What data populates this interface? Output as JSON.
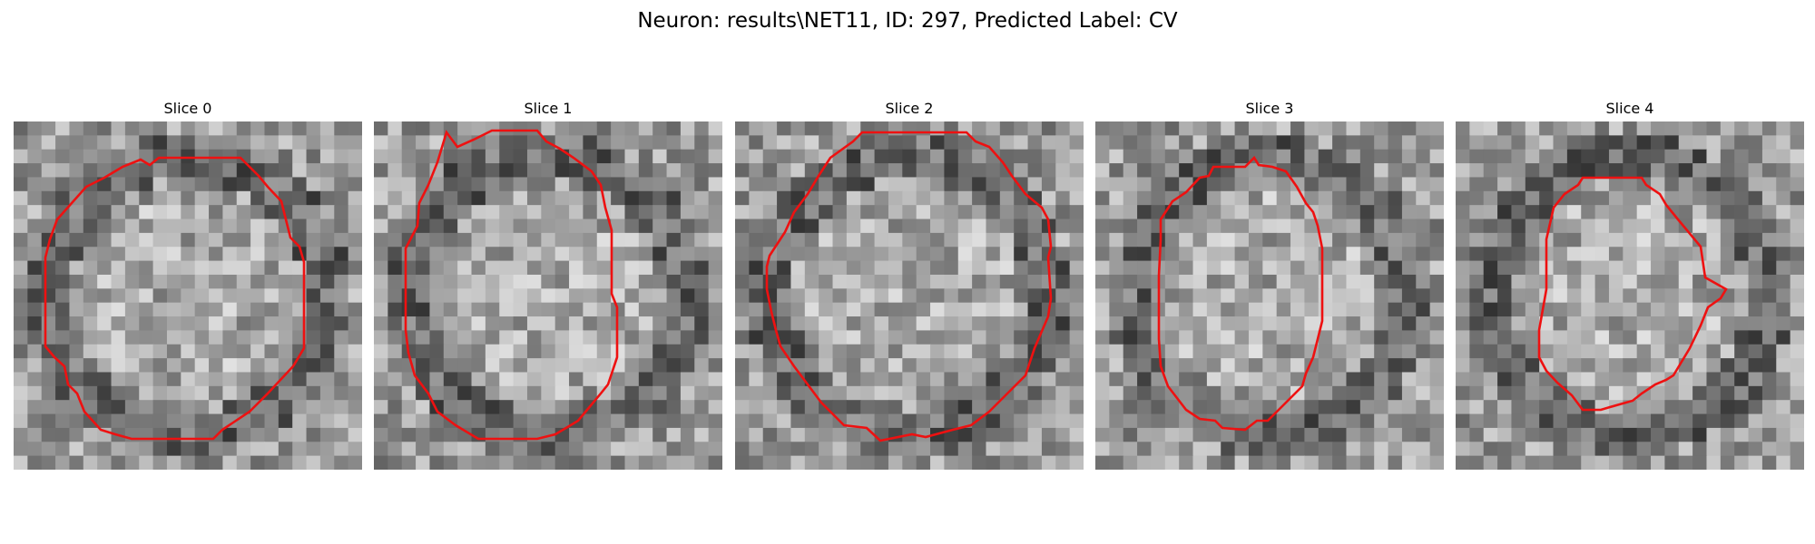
{
  "figure": {
    "title": "Neuron: results\\NET11, ID: 297, Predicted Label: CV",
    "slices": [
      {
        "label": "Slice 0",
        "roi_color": "#ee1111"
      },
      {
        "label": "Slice 1",
        "roi_color": "#ee1111"
      },
      {
        "label": "Slice 2",
        "roi_color": "#ee1111"
      },
      {
        "label": "Slice 3",
        "roi_color": "#ee1111"
      },
      {
        "label": "Slice 4",
        "roi_color": "#ee1111"
      }
    ]
  }
}
